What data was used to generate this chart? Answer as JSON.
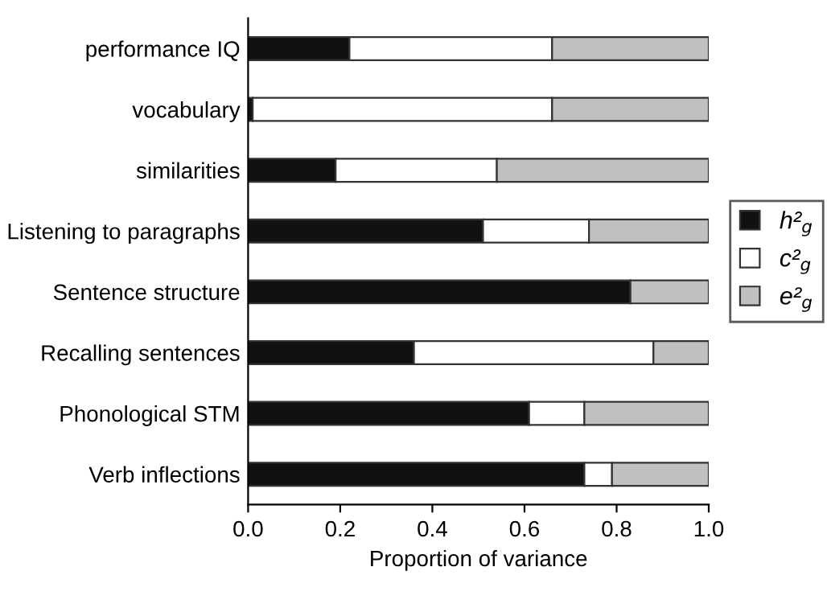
{
  "chart_data": {
    "type": "bar",
    "orientation": "horizontal",
    "stacked": true,
    "categories": [
      "performance IQ",
      "vocabulary",
      "similarities",
      "Listening to paragraphs",
      "Sentence structure",
      "Recalling sentences",
      "Phonological STM",
      "Verb inflections"
    ],
    "series": [
      {
        "name": "h²$_{g}$",
        "color": "#111111",
        "values": [
          0.22,
          0.01,
          0.19,
          0.51,
          0.83,
          0.36,
          0.61,
          0.73
        ]
      },
      {
        "name": "c²$_{g}$",
        "color": "#ffffff",
        "values": [
          0.44,
          0.65,
          0.35,
          0.23,
          0,
          0.52,
          0.12,
          0.06
        ]
      },
      {
        "name": "e²$_{g}$",
        "color": "#c0c0c0",
        "values": [
          0.34,
          0.34,
          0.46,
          0.26,
          0.17,
          0.12,
          0.27,
          0.21
        ]
      }
    ],
    "xlabel": "Proportion of variance",
    "xlim": [
      0,
      1
    ],
    "xticks": [
      {
        "value": 0,
        "label": "0.0"
      },
      {
        "value": 0.2,
        "label": "0.2"
      },
      {
        "value": 0.4,
        "label": "0.4"
      },
      {
        "value": 0.6,
        "label": "0.6"
      },
      {
        "value": 0.8,
        "label": "0.8"
      },
      {
        "value": 1,
        "label": "1.0"
      }
    ],
    "legend": "right",
    "grid": false
  }
}
